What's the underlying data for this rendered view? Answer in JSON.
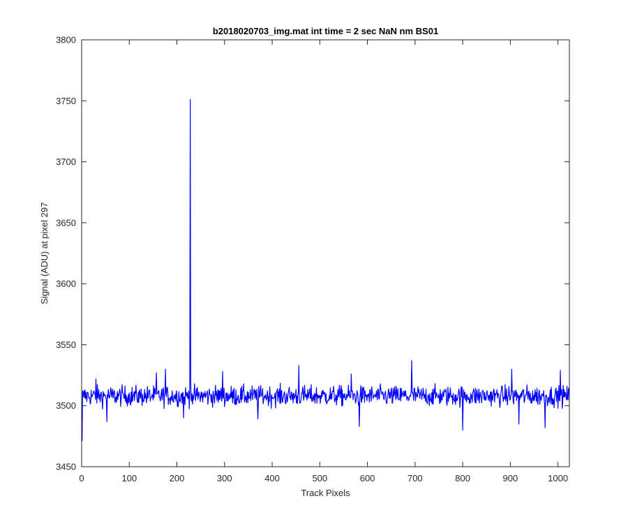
{
  "chart_data": {
    "type": "line",
    "title": "b2018020703_img.mat int time = 2 sec  NaN nm BS01",
    "xlabel": "Track Pixels",
    "ylabel": "Signal (ADU) at pixel 297",
    "xlim": [
      0,
      1024
    ],
    "ylim": [
      3450,
      3800
    ],
    "xticks": [
      0,
      100,
      200,
      300,
      400,
      500,
      600,
      700,
      800,
      900,
      1000
    ],
    "yticks": [
      3450,
      3500,
      3550,
      3600,
      3650,
      3700,
      3750,
      3800
    ],
    "grid": false,
    "legend": "none",
    "series": [
      {
        "color": "#0000ff",
        "baseline": 3508,
        "noise_amplitude": 7,
        "x_start": 1,
        "x_end": 1024,
        "points": [
          {
            "x": 1,
            "y": 3471
          },
          {
            "x": 3,
            "y": 3507
          },
          {
            "x": 30,
            "y": 3522
          },
          {
            "x": 53,
            "y": 3487
          },
          {
            "x": 157,
            "y": 3527
          },
          {
            "x": 176,
            "y": 3530
          },
          {
            "x": 214,
            "y": 3490
          },
          {
            "x": 227,
            "y": 3511
          },
          {
            "x": 228,
            "y": 3751
          },
          {
            "x": 229,
            "y": 3519
          },
          {
            "x": 230,
            "y": 3505
          },
          {
            "x": 296,
            "y": 3528
          },
          {
            "x": 370,
            "y": 3489
          },
          {
            "x": 456,
            "y": 3533
          },
          {
            "x": 566,
            "y": 3526
          },
          {
            "x": 583,
            "y": 3483
          },
          {
            "x": 693,
            "y": 3537
          },
          {
            "x": 800,
            "y": 3480
          },
          {
            "x": 903,
            "y": 3530
          },
          {
            "x": 918,
            "y": 3485
          },
          {
            "x": 973,
            "y": 3482
          },
          {
            "x": 1005,
            "y": 3529
          },
          {
            "x": 1024,
            "y": 3504
          }
        ]
      }
    ]
  }
}
